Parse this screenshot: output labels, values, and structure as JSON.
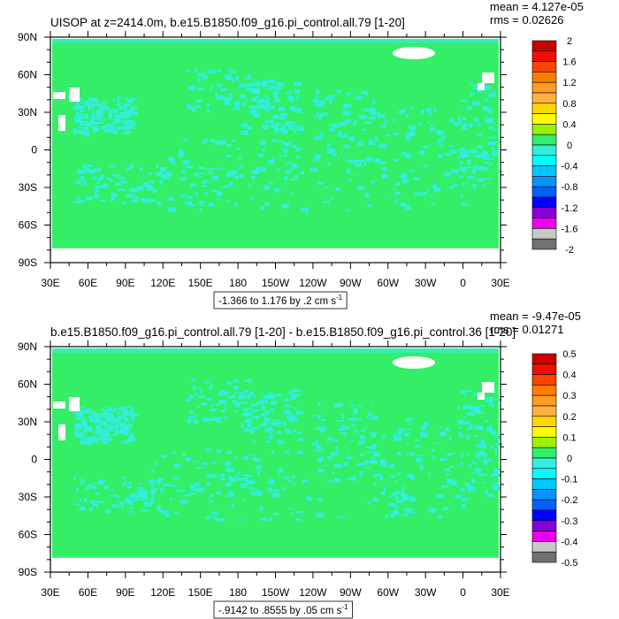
{
  "colors": {
    "green": "#33ee66",
    "cyan": "#33eedd",
    "white": "#ffffff",
    "frame": "#000000"
  },
  "chart_data": [
    {
      "type": "heatmap",
      "title": "UISOP at z=2414.0m, b.e15.B1850.f09_g16.pi_control.all.79 [1-20]",
      "stats": {
        "mean": "mean = 4.127e-05",
        "rms": "rms = 0.02626"
      },
      "x_ticks": [
        "30E",
        "60E",
        "90E",
        "120E",
        "150E",
        "180",
        "150W",
        "120W",
        "90W",
        "60W",
        "30W",
        "0",
        "30E"
      ],
      "y_ticks": [
        "90N",
        "60N",
        "30N",
        "0",
        "30S",
        "60S",
        "90S"
      ],
      "range_label": "-1.366 to 1.176 by .2 cm s",
      "range_sup": "-1",
      "legend_labels": [
        "2",
        "1.6",
        "1.2",
        "0.8",
        "0.4",
        "0",
        "-0.4",
        "-0.8",
        "-1.2",
        "-1.6",
        "-2"
      ],
      "legend_colors": [
        "#c80000",
        "#f01000",
        "#fc4400",
        "#fd7e00",
        "#fd9c20",
        "#fdb040",
        "#fdd800",
        "#fefe00",
        "#9cf000",
        "#33ee66",
        "#33eedd",
        "#00fefe",
        "#00c8fe",
        "#0094fe",
        "#0060fe",
        "#0000fe",
        "#8a00d8",
        "#ee00ee",
        "#c8c8c8",
        "#707070"
      ]
    },
    {
      "type": "heatmap",
      "title": "b.e15.B1850.f09_g16.pi_control.all.79 [1-20] - b.e15.B1850.f09_g16.pi_control.36 [1-20]",
      "stats": {
        "mean": "mean = -9.47e-05",
        "rms": "rms = 0.01271"
      },
      "x_ticks": [
        "30E",
        "60E",
        "90E",
        "120E",
        "150E",
        "180",
        "150W",
        "120W",
        "90W",
        "60W",
        "30W",
        "0",
        "30E"
      ],
      "y_ticks": [
        "90N",
        "60N",
        "30N",
        "0",
        "30S",
        "60S",
        "90S"
      ],
      "range_label": "-.9142 to .8555 by .05 cm s",
      "range_sup": "-1",
      "legend_labels": [
        "0.5",
        "0.4",
        "0.3",
        "0.2",
        "0.1",
        "0",
        "-0.1",
        "-0.2",
        "-0.3",
        "-0.4",
        "-0.5"
      ],
      "legend_colors": [
        "#c80000",
        "#f01000",
        "#fc4400",
        "#fd7e00",
        "#fd9c20",
        "#fdb040",
        "#fdd800",
        "#fefe00",
        "#9cf000",
        "#33ee66",
        "#33eedd",
        "#00fefe",
        "#00c8fe",
        "#0094fe",
        "#0060fe",
        "#0000fe",
        "#8a00d8",
        "#ee00ee",
        "#c8c8c8",
        "#707070"
      ]
    }
  ]
}
